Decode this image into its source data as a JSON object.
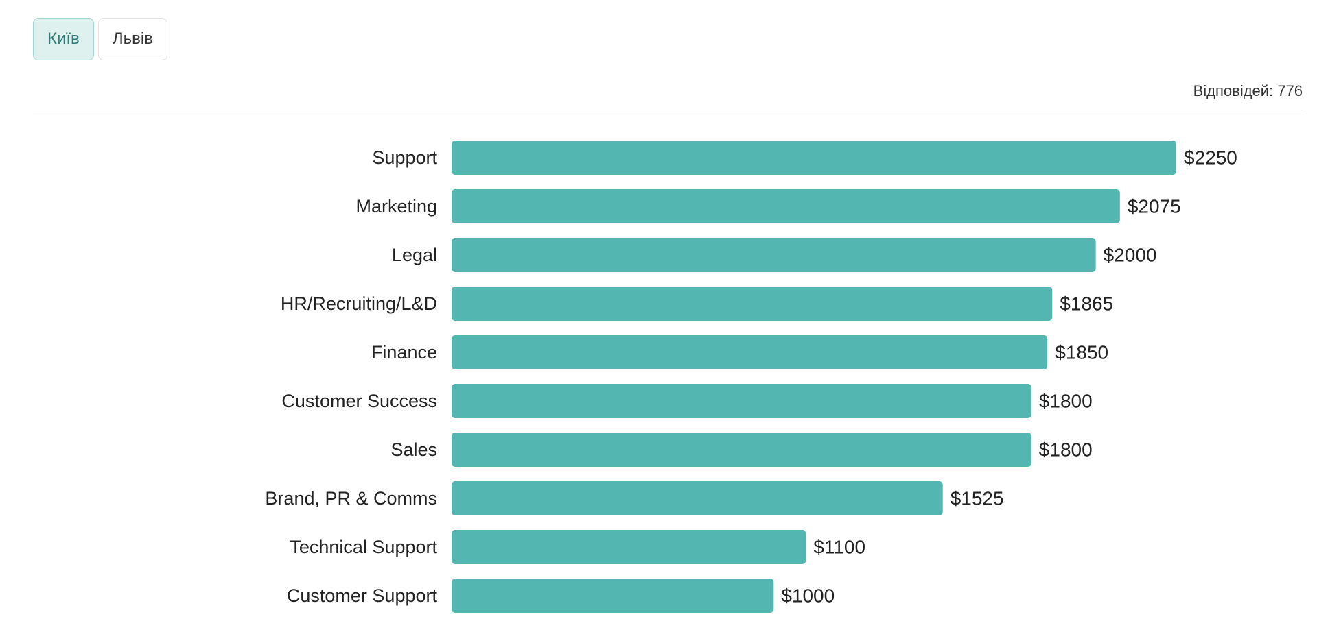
{
  "tabs": [
    {
      "label": "Київ",
      "active": true
    },
    {
      "label": "Львів",
      "active": false
    }
  ],
  "responses": "Відповідей: 776",
  "colors": {
    "bar": "#54b6b0",
    "tab_active_bg": "#def1ef",
    "tab_active_text": "#2e7d75"
  },
  "chart_data": {
    "type": "bar",
    "orientation": "horizontal",
    "value_prefix": "$",
    "categories": [
      "Support",
      "Marketing",
      "Legal",
      "HR/Recruiting/L&D",
      "Finance",
      "Customer Success",
      "Sales",
      "Brand, PR & Comms",
      "Technical Support",
      "Customer Support"
    ],
    "values": [
      2250,
      2075,
      2000,
      1865,
      1850,
      1800,
      1800,
      1525,
      1100,
      1000
    ],
    "value_labels": [
      "$2250",
      "$2075",
      "$2000",
      "$1865",
      "$1850",
      "$1800",
      "$1800",
      "$1525",
      "$1100",
      "$1000"
    ],
    "xlim": [
      0,
      2250
    ],
    "grid": false,
    "legend": "none"
  }
}
